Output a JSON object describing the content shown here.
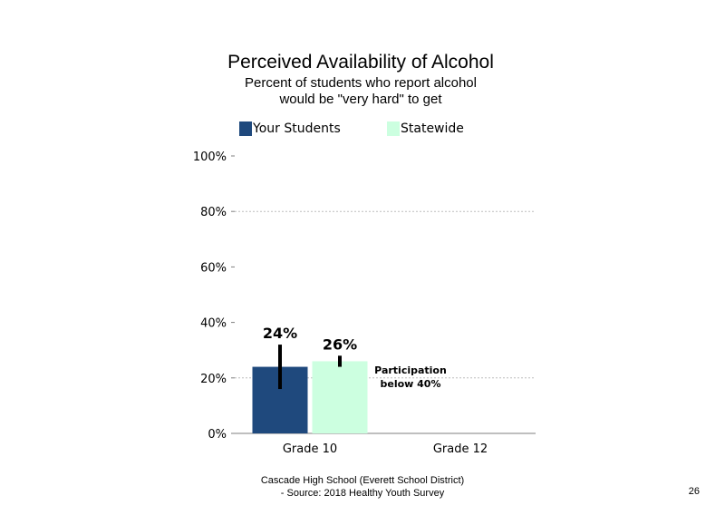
{
  "chart_data": {
    "type": "bar",
    "title": "Perceived Availability of Alcohol",
    "subtitle_lines": [
      "Percent of students who report alcohol",
      "would be \"very hard\" to get"
    ],
    "categories": [
      "Grade 10",
      "Grade 12"
    ],
    "series": [
      {
        "name": "Your Students",
        "color": "#1f497d",
        "values": [
          24,
          null
        ],
        "error_low": [
          16,
          null
        ],
        "error_high": [
          32,
          null
        ],
        "labels": [
          "24%",
          ""
        ]
      },
      {
        "name": "Statewide",
        "color": "#ccffe0",
        "values": [
          26,
          null
        ],
        "error_low": [
          24,
          null
        ],
        "error_high": [
          28,
          null
        ],
        "labels": [
          "26%",
          ""
        ]
      }
    ],
    "ylim": [
      0,
      100
    ],
    "yticks": [
      0,
      20,
      40,
      60,
      80,
      100
    ],
    "ytick_labels": [
      "0%",
      "20%",
      "40%",
      "60%",
      "80%",
      "100%"
    ],
    "gridlines": [
      20,
      80
    ],
    "annotation": {
      "lines": [
        "Participation",
        "below 40%"
      ],
      "category": "Grade 12"
    },
    "legend_position": "top"
  },
  "footer": {
    "line1": "Cascade High School (Everett School District)",
    "line2": "- Source: 2018 Healthy Youth Survey"
  },
  "page_number": "26"
}
